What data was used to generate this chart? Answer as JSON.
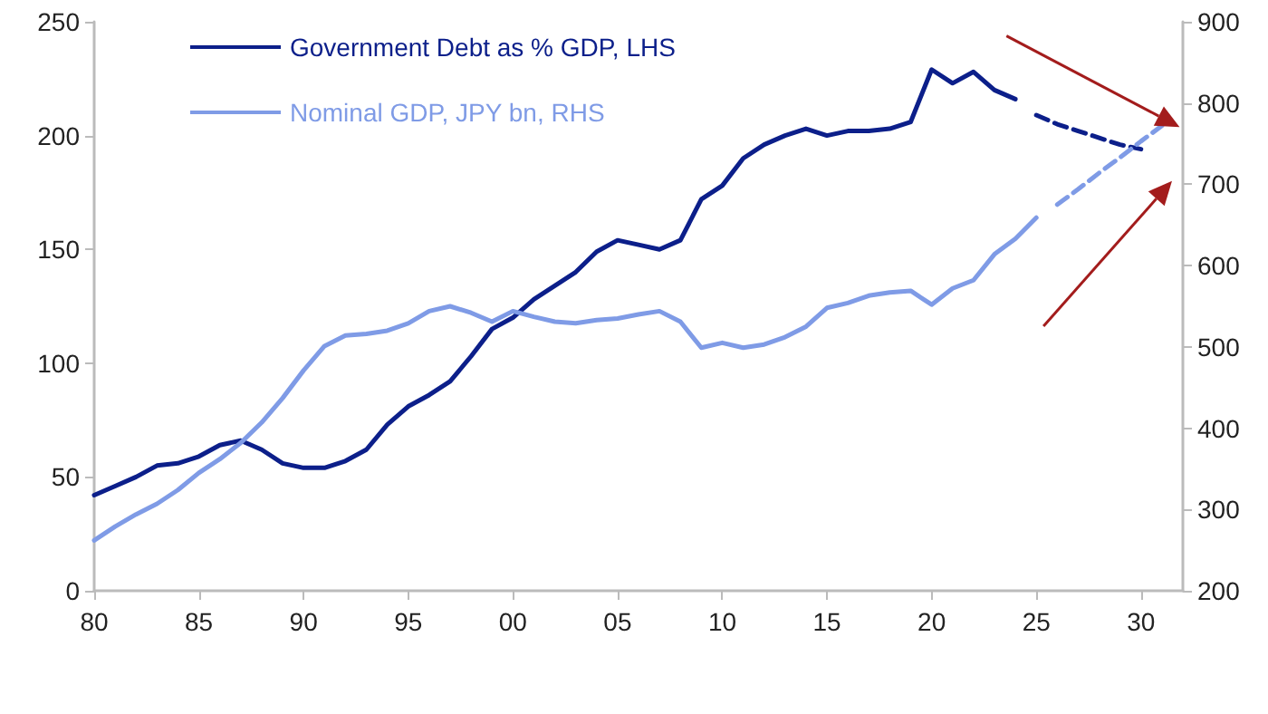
{
  "chart_data": {
    "type": "line",
    "xlim": [
      1980,
      2032
    ],
    "xticks": [
      {
        "value": 1980,
        "label": "80"
      },
      {
        "value": 1985,
        "label": "85"
      },
      {
        "value": 1990,
        "label": "90"
      },
      {
        "value": 1995,
        "label": "95"
      },
      {
        "value": 2000,
        "label": "00"
      },
      {
        "value": 2005,
        "label": "05"
      },
      {
        "value": 2010,
        "label": "10"
      },
      {
        "value": 2015,
        "label": "15"
      },
      {
        "value": 2020,
        "label": "20"
      },
      {
        "value": 2025,
        "label": "25"
      },
      {
        "value": 2030,
        "label": "30"
      }
    ],
    "ylim": [
      0,
      250
    ],
    "yticks": [
      0,
      50,
      100,
      150,
      200,
      250
    ],
    "y2lim": [
      200,
      900
    ],
    "y2ticks": [
      200,
      300,
      400,
      500,
      600,
      700,
      800,
      900
    ],
    "series": [
      {
        "name": "Government Debt as % GDP, LHS",
        "color": "#0c1f8a",
        "line_style": "solid",
        "x": [
          1980,
          1981,
          1982,
          1983,
          1984,
          1985,
          1986,
          1987,
          1988,
          1989,
          1990,
          1991,
          1992,
          1993,
          1994,
          1995,
          1996,
          1997,
          1998,
          1999,
          2000,
          2001,
          2002,
          2003,
          2004,
          2005,
          2006,
          2007,
          2008,
          2009,
          2010,
          2011,
          2012,
          2013,
          2014,
          2015,
          2016,
          2017,
          2018,
          2019,
          2020,
          2021,
          2022,
          2023,
          2024
        ],
        "values": [
          42,
          46,
          50,
          55,
          56,
          59,
          64,
          66,
          62,
          56,
          54,
          54,
          57,
          62,
          73,
          81,
          86,
          92,
          103,
          115,
          120,
          128,
          134,
          140,
          149,
          154,
          152,
          150,
          154,
          172,
          178,
          190,
          196,
          200,
          203,
          200,
          202,
          202,
          203,
          206,
          229,
          223,
          228,
          220,
          216
        ]
      },
      {
        "color": "#0c1f8a",
        "line_style": "dashed",
        "x": [
          2025,
          2026,
          2027,
          2028,
          2029,
          2030
        ],
        "values": [
          209,
          205,
          202,
          199,
          196,
          194
        ]
      },
      {
        "name": "Nominal GDP, JPY bn, RHS",
        "color": "#7f9be6",
        "axis": "y2",
        "line_style": "solid",
        "x": [
          1980,
          1981,
          1982,
          1983,
          1984,
          1985,
          1986,
          1987,
          1988,
          1989,
          1990,
          1991,
          1992,
          1993,
          1994,
          1995,
          1996,
          1997,
          1998,
          1999,
          2000,
          2001,
          2002,
          2003,
          2004,
          2005,
          2006,
          2007,
          2008,
          2009,
          2010,
          2011,
          2012,
          2013,
          2014,
          2015,
          2016,
          2017,
          2018,
          2019,
          2020,
          2021,
          2022,
          2023,
          2024,
          2025
        ],
        "values": [
          262,
          279,
          294,
          307,
          324,
          345,
          362,
          382,
          407,
          437,
          471,
          501,
          514,
          516,
          520,
          529,
          544,
          550,
          542,
          531,
          544,
          537,
          531,
          529,
          533,
          535,
          540,
          544,
          531,
          499,
          505,
          499,
          503,
          512,
          525,
          548,
          554,
          563,
          567,
          569,
          552,
          572,
          582,
          614,
          633,
          659
        ]
      },
      {
        "color": "#7f9be6",
        "axis": "y2",
        "line_style": "dashed",
        "x": [
          2026,
          2027,
          2028,
          2029,
          2030,
          2031
        ],
        "values": [
          675,
          694,
          714,
          733,
          753,
          772
        ]
      }
    ],
    "legend": "top left",
    "grid": false,
    "marker": "none"
  }
}
